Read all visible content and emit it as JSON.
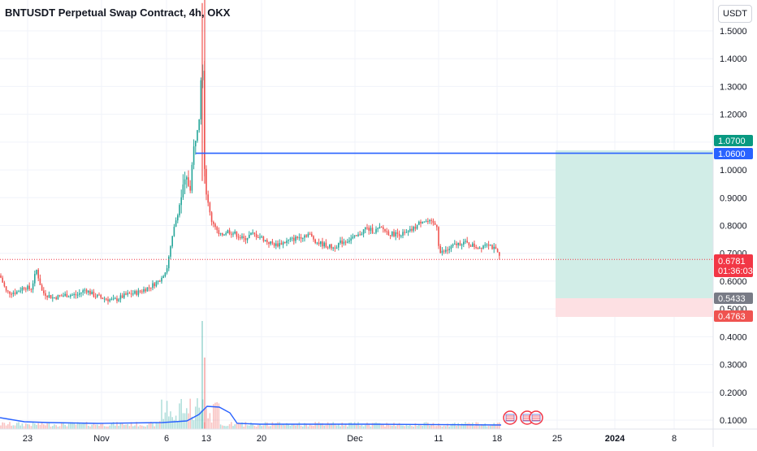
{
  "title": "BNTUSDT Perpetual Swap Contract, 4h, OKX",
  "price_unit": "USDT",
  "colors": {
    "up": "#26a69a",
    "down": "#ef5350",
    "profit_zone": "#d1ede7",
    "loss_zone": "#fde0e3",
    "horizontal_line": "#2962ff",
    "volume_ma": "#2962ff",
    "target_badge": "#089981",
    "entry_badge": "#2962ff",
    "current_badge": "#f23645",
    "stop_badge": "#ef5350",
    "grey_badge": "#787b86"
  },
  "badges": {
    "target": "1.0700",
    "entry": "1.0600",
    "current_price": "0.6781",
    "countdown": "01:36:03",
    "grey": "0.5433",
    "stop": "0.4763"
  },
  "chart_data": {
    "type": "candlestick",
    "y_ticks": [
      "1.5000",
      "1.4000",
      "1.3000",
      "1.2000",
      "1.1000",
      "1.0000",
      "0.9000",
      "0.8000",
      "0.7000",
      "0.6000",
      "0.5000",
      "0.4000",
      "0.3000",
      "0.2000",
      "0.1000"
    ],
    "x_ticks": [
      "23",
      "Nov",
      "6",
      "13",
      "20",
      "Dec",
      "11",
      "18",
      "25",
      "2024",
      "8"
    ],
    "ylim": [
      0.07,
      1.6
    ],
    "price_path": [
      [
        0,
        0.62
      ],
      [
        8,
        0.56
      ],
      [
        20,
        0.56
      ],
      [
        30,
        0.58
      ],
      [
        38,
        0.57
      ],
      [
        45,
        0.64
      ],
      [
        52,
        0.56
      ],
      [
        65,
        0.54
      ],
      [
        80,
        0.55
      ],
      [
        95,
        0.55
      ],
      [
        105,
        0.57
      ],
      [
        115,
        0.55
      ],
      [
        125,
        0.54
      ],
      [
        140,
        0.53
      ],
      [
        155,
        0.55
      ],
      [
        170,
        0.56
      ],
      [
        185,
        0.58
      ],
      [
        195,
        0.6
      ],
      [
        205,
        0.64
      ],
      [
        210,
        0.72
      ],
      [
        215,
        0.8
      ],
      [
        220,
        0.86
      ],
      [
        225,
        0.93
      ],
      [
        230,
        0.96
      ],
      [
        234,
        0.94
      ],
      [
        238,
        1.06
      ],
      [
        242,
        1.15
      ],
      [
        246,
        1.22
      ],
      [
        249,
        1.48
      ],
      [
        252,
        0.98
      ],
      [
        256,
        0.88
      ],
      [
        260,
        0.82
      ],
      [
        265,
        0.8
      ],
      [
        270,
        0.76
      ],
      [
        280,
        0.78
      ],
      [
        290,
        0.77
      ],
      [
        300,
        0.75
      ],
      [
        310,
        0.77
      ],
      [
        320,
        0.76
      ],
      [
        330,
        0.74
      ],
      [
        340,
        0.73
      ],
      [
        350,
        0.74
      ],
      [
        360,
        0.75
      ],
      [
        370,
        0.76
      ],
      [
        380,
        0.77
      ],
      [
        390,
        0.74
      ],
      [
        400,
        0.73
      ],
      [
        410,
        0.72
      ],
      [
        420,
        0.74
      ],
      [
        430,
        0.75
      ],
      [
        440,
        0.76
      ],
      [
        450,
        0.79
      ],
      [
        460,
        0.78
      ],
      [
        470,
        0.79
      ],
      [
        480,
        0.77
      ],
      [
        490,
        0.77
      ],
      [
        500,
        0.77
      ],
      [
        510,
        0.79
      ],
      [
        520,
        0.82
      ],
      [
        530,
        0.81
      ],
      [
        538,
        0.8
      ],
      [
        541,
        0.7
      ],
      [
        550,
        0.71
      ],
      [
        560,
        0.73
      ],
      [
        570,
        0.74
      ],
      [
        580,
        0.73
      ],
      [
        590,
        0.72
      ],
      [
        600,
        0.74
      ],
      [
        610,
        0.71
      ],
      [
        617,
        0.678
      ]
    ],
    "horizontal_line": {
      "price": 1.06
    }
  }
}
